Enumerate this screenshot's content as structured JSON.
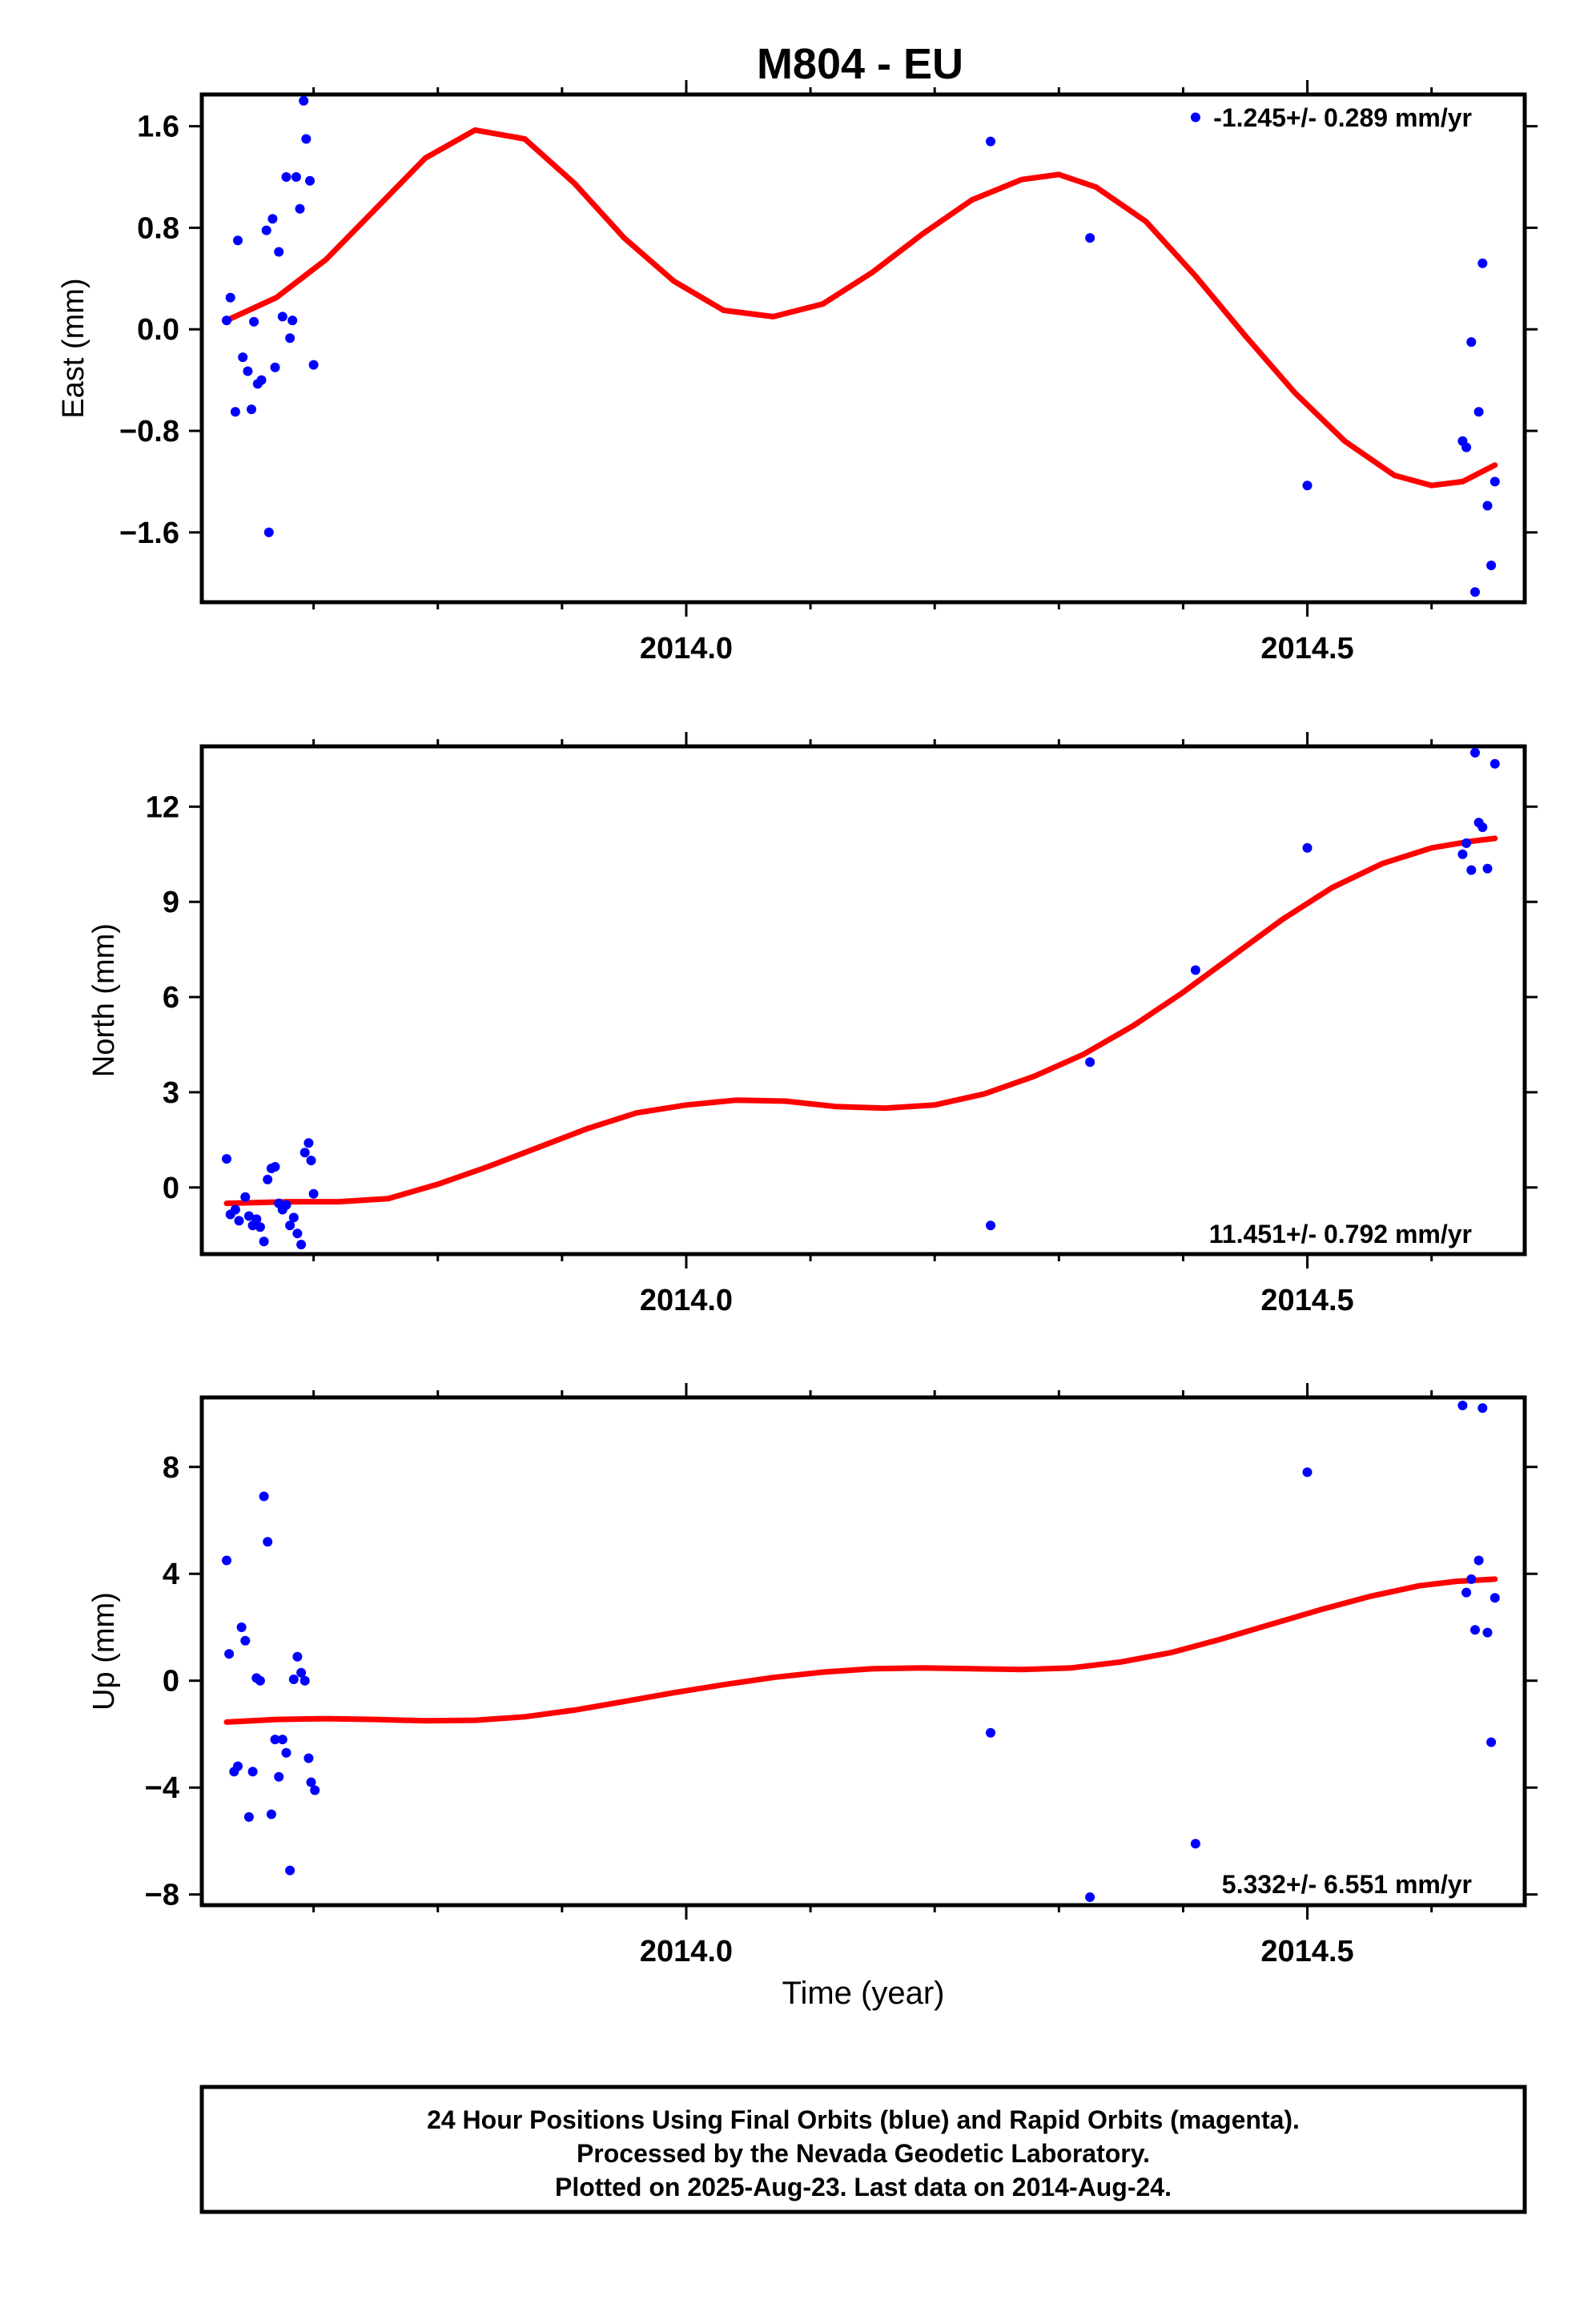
{
  "title": "M804 - EU",
  "colors": {
    "points": "#0000ff",
    "fit": "#ff0000",
    "frame": "#000000"
  },
  "footer": {
    "line1": "24 Hour Positions Using Final Orbits (blue) and Rapid Orbits (magenta).",
    "line2": "Processed by the Nevada Geodetic Laboratory.",
    "line3": "Plotted on 2025-Aug-23. Last data on 2014-Aug-24."
  },
  "chart_data": [
    {
      "type": "scatter",
      "ylabel": "East (mm)",
      "xlabel": "",
      "rate": "-1.245+/- 0.289 mm/yr",
      "rate_position": "top-right",
      "xlim": [
        2013.61,
        2014.675
      ],
      "ylim": [
        -2.15,
        1.85
      ],
      "xticks": [
        2014.0,
        2014.5
      ],
      "xtick_labels": [
        "2014.0",
        "2014.5"
      ],
      "xminor": [
        2013.7,
        2013.8,
        2013.9,
        2014.1,
        2014.2,
        2014.3,
        2014.4,
        2014.6
      ],
      "yticks": [
        1.6,
        0.8,
        0.0,
        -0.8,
        -1.6
      ],
      "ytick_labels": [
        "1.6",
        "0.8",
        "0.0",
        "−0.8",
        "−1.6"
      ],
      "points": [
        [
          2013.63,
          0.07
        ],
        [
          2013.633,
          0.25
        ],
        [
          2013.637,
          -0.65
        ],
        [
          2013.639,
          0.7
        ],
        [
          2013.643,
          -0.22
        ],
        [
          2013.647,
          -0.33
        ],
        [
          2013.65,
          -0.63
        ],
        [
          2013.652,
          0.06
        ],
        [
          2013.655,
          -0.43
        ],
        [
          2013.658,
          -0.4
        ],
        [
          2013.662,
          0.78
        ],
        [
          2013.664,
          -1.6
        ],
        [
          2013.667,
          0.87
        ],
        [
          2013.669,
          -0.3
        ],
        [
          2013.672,
          0.61
        ],
        [
          2013.675,
          0.1
        ],
        [
          2013.678,
          1.2
        ],
        [
          2013.681,
          -0.07
        ],
        [
          2013.683,
          0.07
        ],
        [
          2013.686,
          1.2
        ],
        [
          2013.689,
          0.95
        ],
        [
          2013.692,
          1.8
        ],
        [
          2013.694,
          1.5
        ],
        [
          2013.697,
          1.17
        ],
        [
          2013.7,
          -0.28
        ],
        [
          2014.245,
          1.48
        ],
        [
          2014.325,
          0.72
        ],
        [
          2014.41,
          1.67
        ],
        [
          2014.5,
          -1.23
        ],
        [
          2014.625,
          -0.88
        ],
        [
          2014.628,
          -0.93
        ],
        [
          2014.632,
          -0.1
        ],
        [
          2014.635,
          -2.07
        ],
        [
          2014.638,
          -0.65
        ],
        [
          2014.641,
          0.52
        ],
        [
          2014.645,
          -1.39
        ],
        [
          2014.648,
          -1.86
        ],
        [
          2014.651,
          -1.2
        ]
      ],
      "fit": [
        [
          2013.63,
          0.07
        ],
        [
          2013.67,
          0.25
        ],
        [
          2013.71,
          0.55
        ],
        [
          2013.75,
          0.95
        ],
        [
          2013.79,
          1.35
        ],
        [
          2013.83,
          1.57
        ],
        [
          2013.87,
          1.5
        ],
        [
          2013.91,
          1.15
        ],
        [
          2013.95,
          0.72
        ],
        [
          2013.99,
          0.38
        ],
        [
          2014.03,
          0.15
        ],
        [
          2014.07,
          0.1
        ],
        [
          2014.11,
          0.2
        ],
        [
          2014.15,
          0.45
        ],
        [
          2014.19,
          0.75
        ],
        [
          2014.23,
          1.02
        ],
        [
          2014.27,
          1.18
        ],
        [
          2014.3,
          1.22
        ],
        [
          2014.33,
          1.12
        ],
        [
          2014.37,
          0.85
        ],
        [
          2014.41,
          0.42
        ],
        [
          2014.45,
          -0.05
        ],
        [
          2014.49,
          -0.5
        ],
        [
          2014.53,
          -0.88
        ],
        [
          2014.57,
          -1.15
        ],
        [
          2014.6,
          -1.23
        ],
        [
          2014.625,
          -1.2
        ],
        [
          2014.651,
          -1.07
        ]
      ]
    },
    {
      "type": "scatter",
      "ylabel": "North (mm)",
      "xlabel": "",
      "rate": "11.451+/- 0.792 mm/yr",
      "rate_position": "bottom-right",
      "xlim": [
        2013.61,
        2014.675
      ],
      "ylim": [
        -2.1,
        13.9
      ],
      "xticks": [
        2014.0,
        2014.5
      ],
      "xtick_labels": [
        "2014.0",
        "2014.5"
      ],
      "xminor": [
        2013.7,
        2013.8,
        2013.9,
        2014.1,
        2014.2,
        2014.3,
        2014.4,
        2014.6
      ],
      "yticks": [
        12,
        9,
        6,
        3,
        0
      ],
      "ytick_labels": [
        "12",
        "9",
        "6",
        "3",
        "0"
      ],
      "points": [
        [
          2013.63,
          0.9
        ],
        [
          2013.633,
          -0.85
        ],
        [
          2013.637,
          -0.7
        ],
        [
          2013.64,
          -1.05
        ],
        [
          2013.645,
          -0.3
        ],
        [
          2013.648,
          -0.9
        ],
        [
          2013.651,
          -1.2
        ],
        [
          2013.654,
          -1.0
        ],
        [
          2013.657,
          -1.25
        ],
        [
          2013.66,
          -1.7
        ],
        [
          2013.663,
          0.25
        ],
        [
          2013.666,
          0.6
        ],
        [
          2013.669,
          0.65
        ],
        [
          2013.672,
          -0.5
        ],
        [
          2013.675,
          -0.7
        ],
        [
          2013.678,
          -0.55
        ],
        [
          2013.681,
          -1.2
        ],
        [
          2013.684,
          -0.95
        ],
        [
          2013.687,
          -1.45
        ],
        [
          2013.69,
          -1.8
        ],
        [
          2013.693,
          1.1
        ],
        [
          2013.696,
          1.4
        ],
        [
          2013.698,
          0.85
        ],
        [
          2013.7,
          -0.2
        ],
        [
          2014.245,
          -1.2
        ],
        [
          2014.325,
          3.95
        ],
        [
          2014.41,
          6.85
        ],
        [
          2014.5,
          10.7
        ],
        [
          2014.625,
          10.5
        ],
        [
          2014.628,
          10.85
        ],
        [
          2014.632,
          10.0
        ],
        [
          2014.635,
          13.7
        ],
        [
          2014.638,
          11.5
        ],
        [
          2014.641,
          11.35
        ],
        [
          2014.645,
          10.05
        ],
        [
          2014.651,
          13.35
        ]
      ],
      "fit": [
        [
          2013.63,
          -0.5
        ],
        [
          2013.68,
          -0.45
        ],
        [
          2013.72,
          -0.45
        ],
        [
          2013.76,
          -0.35
        ],
        [
          2013.8,
          0.1
        ],
        [
          2013.84,
          0.65
        ],
        [
          2013.88,
          1.25
        ],
        [
          2013.92,
          1.85
        ],
        [
          2013.96,
          2.35
        ],
        [
          2014.0,
          2.6
        ],
        [
          2014.04,
          2.75
        ],
        [
          2014.08,
          2.72
        ],
        [
          2014.12,
          2.55
        ],
        [
          2014.16,
          2.5
        ],
        [
          2014.2,
          2.6
        ],
        [
          2014.24,
          2.95
        ],
        [
          2014.28,
          3.5
        ],
        [
          2014.32,
          4.2
        ],
        [
          2014.36,
          5.1
        ],
        [
          2014.4,
          6.15
        ],
        [
          2014.44,
          7.3
        ],
        [
          2014.48,
          8.45
        ],
        [
          2014.52,
          9.45
        ],
        [
          2014.56,
          10.2
        ],
        [
          2014.6,
          10.7
        ],
        [
          2014.63,
          10.9
        ],
        [
          2014.651,
          11.0
        ]
      ]
    },
    {
      "type": "scatter",
      "ylabel": "Up (mm)",
      "xlabel": "Time (year)",
      "rate": "5.332+/- 6.551 mm/yr",
      "rate_position": "bottom-right",
      "xlim": [
        2013.61,
        2014.675
      ],
      "ylim": [
        -8.4,
        10.6
      ],
      "xticks": [
        2014.0,
        2014.5
      ],
      "xtick_labels": [
        "2014.0",
        "2014.5"
      ],
      "xminor": [
        2013.7,
        2013.8,
        2013.9,
        2014.1,
        2014.2,
        2014.3,
        2014.4,
        2014.6
      ],
      "yticks": [
        8,
        4,
        0,
        -4,
        -8
      ],
      "ytick_labels": [
        "8",
        "4",
        "0",
        "−4",
        "−8"
      ],
      "points": [
        [
          2013.63,
          4.5
        ],
        [
          2013.632,
          1.0
        ],
        [
          2013.636,
          -3.4
        ],
        [
          2013.639,
          -3.2
        ],
        [
          2013.642,
          2.0
        ],
        [
          2013.645,
          1.5
        ],
        [
          2013.648,
          -5.1
        ],
        [
          2013.651,
          -3.4
        ],
        [
          2013.654,
          0.1
        ],
        [
          2013.657,
          0.0
        ],
        [
          2013.66,
          6.9
        ],
        [
          2013.663,
          5.2
        ],
        [
          2013.666,
          -5.0
        ],
        [
          2013.669,
          -2.2
        ],
        [
          2013.672,
          -3.6
        ],
        [
          2013.675,
          -2.2
        ],
        [
          2013.678,
          -2.7
        ],
        [
          2013.681,
          -7.1
        ],
        [
          2013.684,
          0.05
        ],
        [
          2013.687,
          0.9
        ],
        [
          2013.69,
          0.3
        ],
        [
          2013.693,
          0.0
        ],
        [
          2013.696,
          -2.9
        ],
        [
          2013.698,
          -3.8
        ],
        [
          2013.701,
          -4.1
        ],
        [
          2014.245,
          -1.95
        ],
        [
          2014.325,
          -8.1
        ],
        [
          2014.41,
          -6.1
        ],
        [
          2014.5,
          7.8
        ],
        [
          2014.625,
          10.3
        ],
        [
          2014.628,
          3.3
        ],
        [
          2014.632,
          3.8
        ],
        [
          2014.635,
          1.9
        ],
        [
          2014.638,
          4.5
        ],
        [
          2014.641,
          10.2
        ],
        [
          2014.645,
          1.8
        ],
        [
          2014.648,
          -2.3
        ],
        [
          2014.651,
          3.1
        ]
      ],
      "fit": [
        [
          2013.63,
          -1.55
        ],
        [
          2013.67,
          -1.45
        ],
        [
          2013.71,
          -1.42
        ],
        [
          2013.75,
          -1.45
        ],
        [
          2013.79,
          -1.5
        ],
        [
          2013.83,
          -1.48
        ],
        [
          2013.87,
          -1.35
        ],
        [
          2013.91,
          -1.1
        ],
        [
          2013.95,
          -0.78
        ],
        [
          2013.99,
          -0.45
        ],
        [
          2014.03,
          -0.15
        ],
        [
          2014.07,
          0.12
        ],
        [
          2014.11,
          0.32
        ],
        [
          2014.15,
          0.45
        ],
        [
          2014.19,
          0.48
        ],
        [
          2014.23,
          0.45
        ],
        [
          2014.27,
          0.42
        ],
        [
          2014.31,
          0.48
        ],
        [
          2014.35,
          0.7
        ],
        [
          2014.39,
          1.05
        ],
        [
          2014.43,
          1.55
        ],
        [
          2014.47,
          2.1
        ],
        [
          2014.51,
          2.65
        ],
        [
          2014.55,
          3.15
        ],
        [
          2014.59,
          3.55
        ],
        [
          2014.62,
          3.72
        ],
        [
          2014.651,
          3.8
        ]
      ]
    }
  ]
}
